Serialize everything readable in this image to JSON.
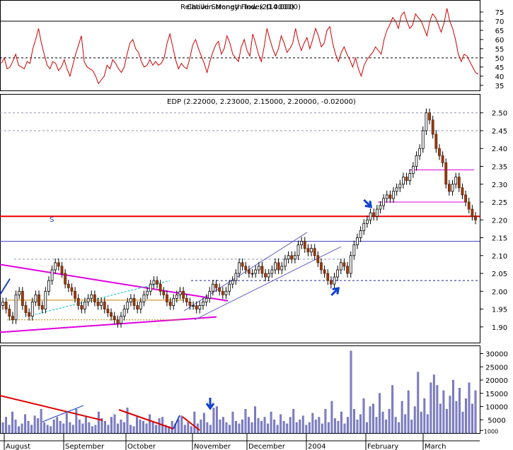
{
  "chart_data": [
    {
      "type": "line",
      "panel": "rsi",
      "title": "Relative Strength Index (14.0000)",
      "overlap_title": "Chaikin Money Flow (20.0000)",
      "ylim": [
        33,
        80
      ],
      "yticks": [
        35,
        40,
        45,
        50,
        55,
        60,
        65,
        70,
        75
      ],
      "reference_lines": [
        {
          "y": 70,
          "style": "solid"
        },
        {
          "y": 50,
          "style": "dashed"
        }
      ],
      "series": [
        {
          "values": [
            47,
            50,
            44,
            45,
            48,
            52,
            46,
            45,
            44,
            48,
            47,
            55,
            60,
            66,
            58,
            52,
            46,
            44,
            48,
            47,
            43,
            45,
            49,
            44,
            40,
            46,
            52,
            57,
            62,
            48,
            45,
            44,
            43,
            40,
            36,
            38,
            40,
            46,
            44,
            49,
            47,
            44,
            42,
            45,
            52,
            58,
            60,
            55,
            53,
            48,
            45,
            46,
            49,
            46,
            48,
            46,
            47,
            50,
            58,
            63,
            56,
            49,
            44,
            47,
            45,
            44,
            50,
            57,
            60,
            55,
            51,
            47,
            42,
            48,
            53,
            57,
            59,
            52,
            55,
            62,
            58,
            52,
            50,
            48,
            56,
            60,
            54,
            51,
            63,
            58,
            52,
            48,
            56,
            66,
            60,
            55,
            51,
            55,
            62,
            58,
            53,
            55,
            58,
            66,
            59,
            54,
            58,
            61,
            55,
            60,
            66,
            62,
            56,
            58,
            65,
            67,
            58,
            52,
            48,
            53,
            56,
            52,
            49,
            45,
            50,
            44,
            40,
            46,
            49,
            51,
            53,
            56,
            54,
            52,
            60,
            65,
            68,
            72,
            70,
            66,
            73,
            75,
            70,
            66,
            68,
            74,
            72,
            70,
            66,
            62,
            70,
            74,
            72,
            68,
            64,
            69,
            77,
            70,
            66,
            60,
            52,
            48,
            52,
            51,
            48,
            45,
            42,
            41
          ]
        }
      ]
    },
    {
      "type": "candlestick",
      "panel": "price",
      "title": "EDP (2.22000, 2.23000, 2.15000, 2.20000, -0.02000)",
      "ylim": [
        1.86,
        2.545
      ],
      "yticks": [
        1.9,
        1.95,
        2.0,
        2.05,
        2.1,
        2.15,
        2.2,
        2.25,
        2.3,
        2.35,
        2.4,
        2.45,
        2.5
      ],
      "annotation": "S",
      "x": [
        "August",
        "September",
        "October",
        "November",
        "December",
        "2004",
        "February",
        "March"
      ],
      "horizontal_levels": [
        2.21,
        2.14,
        2.03,
        2.09,
        2.45,
        2.5,
        2.34,
        2.25
      ],
      "closes": [
        1.97,
        1.95,
        1.93,
        1.92,
        1.99,
        2.0,
        1.96,
        1.94,
        1.93,
        1.97,
        1.99,
        1.96,
        1.95,
        2.0,
        2.03,
        2.06,
        2.08,
        2.07,
        2.05,
        2.02,
        2.01,
        2.0,
        1.98,
        1.96,
        1.95,
        1.97,
        1.98,
        1.99,
        1.97,
        1.96,
        1.97,
        1.95,
        1.94,
        1.93,
        1.92,
        1.91,
        1.93,
        1.95,
        1.97,
        1.98,
        1.96,
        1.95,
        1.97,
        1.99,
        2.0,
        2.02,
        2.03,
        2.02,
        2.0,
        1.99,
        1.97,
        1.96,
        1.98,
        1.99,
        2.0,
        1.98,
        1.97,
        1.96,
        1.96,
        1.95,
        1.96,
        1.97,
        1.98,
        2.0,
        2.02,
        2.01,
        2.0,
        1.99,
        2.0,
        2.02,
        2.03,
        2.05,
        2.08,
        2.07,
        2.06,
        2.05,
        2.05,
        2.06,
        2.07,
        2.05,
        2.04,
        2.05,
        2.06,
        2.08,
        2.06,
        2.07,
        2.09,
        2.1,
        2.09,
        2.1,
        2.13,
        2.14,
        2.12,
        2.11,
        2.12,
        2.1,
        2.08,
        2.06,
        2.05,
        2.03,
        2.02,
        2.04,
        2.06,
        2.08,
        2.07,
        2.05,
        2.1,
        2.13,
        2.15,
        2.17,
        2.19,
        2.2,
        2.22,
        2.21,
        2.23,
        2.24,
        2.26,
        2.27,
        2.26,
        2.28,
        2.29,
        2.3,
        2.32,
        2.31,
        2.33,
        2.35,
        2.38,
        2.4,
        2.45,
        2.5,
        2.48,
        2.44,
        2.4,
        2.38,
        2.36,
        2.3,
        2.28,
        2.3,
        2.32,
        2.29,
        2.27,
        2.25,
        2.23,
        2.21,
        2.2
      ]
    },
    {
      "type": "bar",
      "panel": "volume",
      "ylim": [
        0,
        32000
      ],
      "yticks": [
        1000,
        5000,
        10000,
        15000,
        20000,
        25000,
        30000
      ],
      "values": [
        4000,
        6000,
        3000,
        8000,
        5000,
        2500,
        3500,
        7000,
        4500,
        3000,
        6500,
        5500,
        9000,
        4000,
        3000,
        2500,
        5000,
        6000,
        4500,
        3500,
        7500,
        4000,
        3000,
        9000,
        5000,
        3500,
        6000,
        4000,
        2500,
        3000,
        8000,
        5500,
        4500,
        3000,
        6000,
        7000,
        3500,
        5000,
        4000,
        9500,
        3000,
        2500,
        6000,
        5000,
        4500,
        3500,
        7000,
        4000,
        3000,
        5500,
        6000,
        3000,
        2500,
        4500,
        3500,
        5000,
        6500,
        3000,
        4000,
        2500,
        8000,
        3500,
        5000,
        7500,
        4000,
        3000,
        9500,
        10000,
        5000,
        6000,
        4000,
        3000,
        8000,
        4500,
        3500,
        5000,
        9000,
        6000,
        4000,
        10000,
        5500,
        4500,
        6000,
        3500,
        8000,
        5000,
        3000,
        7000,
        4500,
        3500,
        6000,
        9000,
        4000,
        5000,
        6500,
        3000,
        4000,
        7500,
        5000,
        6000,
        3500,
        9000,
        4000,
        12000,
        5500,
        4500,
        8000,
        3500,
        6000,
        31000,
        9000,
        5000,
        7000,
        13000,
        4000,
        10000,
        11000,
        6000,
        15000,
        8000,
        5000,
        9000,
        18000,
        6000,
        4000,
        12000,
        7000,
        16000,
        5000,
        10000,
        23000,
        8000,
        13000,
        7000,
        19000,
        22000,
        18000,
        11000,
        16000,
        9000,
        14000,
        20000,
        12000,
        17000,
        8000,
        13000,
        19000,
        11000,
        16000
      ],
      "arrow": "down"
    }
  ]
}
